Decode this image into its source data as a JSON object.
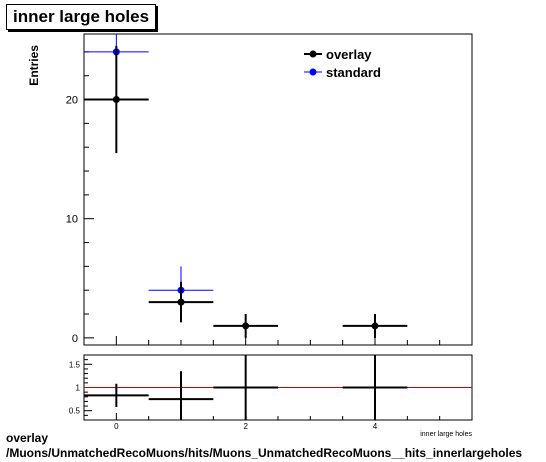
{
  "title": "inner large holes",
  "footer": {
    "line1": "overlay",
    "line2": "/Muons/UnmatchedRecoMuons/hits/Muons_UnmatchedRecoMuons__hits_innerlargeholes"
  },
  "colors": {
    "overlay": "#000000",
    "standard": "#0000ff",
    "ratio_line": "#cc0000"
  },
  "chart_data": [
    {
      "type": "scatter",
      "panel": "main",
      "ylabel": "Entries",
      "xlim": [
        -0.5,
        5.5
      ],
      "ylim": [
        -0.6,
        25.5
      ],
      "y_ticks": [
        0,
        10,
        20
      ],
      "x_ticks": [
        0,
        2,
        4
      ],
      "legend_position": "top-right",
      "series": [
        {
          "name": "overlay",
          "points": [
            {
              "x": 0,
              "y": 20,
              "yerr": 4.5,
              "xerr": 0.5
            },
            {
              "x": 1,
              "y": 3,
              "yerr": 1.7,
              "xerr": 0.5
            },
            {
              "x": 2,
              "y": 1,
              "yerr": 1.0,
              "xerr": 0.5
            },
            {
              "x": 4,
              "y": 1,
              "yerr": 1.0,
              "xerr": 0.5
            }
          ]
        },
        {
          "name": "standard",
          "points": [
            {
              "x": 0,
              "y": 24,
              "yerr": 4.9,
              "xerr": 0.5
            },
            {
              "x": 1,
              "y": 4,
              "yerr": 2.0,
              "xerr": 0.5
            }
          ]
        }
      ]
    },
    {
      "type": "scatter",
      "panel": "ratio",
      "xlabel": "inner large holes",
      "xlim": [
        -0.5,
        5.5
      ],
      "ylim": [
        0.3,
        1.7
      ],
      "y_ticks": [
        0.5,
        1,
        1.5
      ],
      "x_ticks": [
        0,
        2,
        4
      ],
      "reference_line": 1,
      "points": [
        {
          "x": 0,
          "y": 0.83,
          "yerr": 0.25,
          "xerr": 0.5
        },
        {
          "x": 1,
          "y": 0.75,
          "yerr": 0.6,
          "xerr": 0.5
        },
        {
          "x": 2,
          "y": 1.0,
          "yerr": 1.0,
          "xerr": 0.5
        },
        {
          "x": 4,
          "y": 1.0,
          "yerr": 1.0,
          "xerr": 0.5
        }
      ]
    }
  ]
}
